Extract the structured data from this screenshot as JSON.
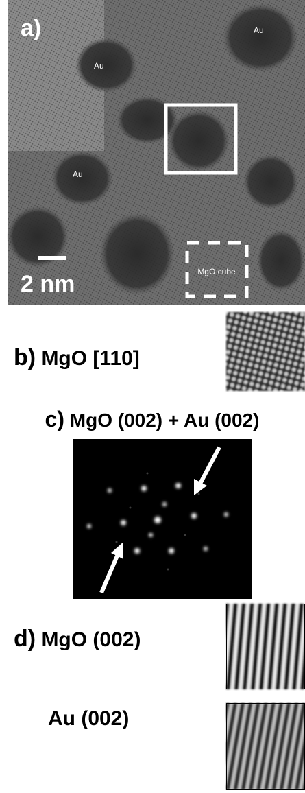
{
  "panel_a": {
    "label": "a)",
    "annotations": [
      "Au",
      "Au",
      "Au"
    ],
    "scale_bar": "2 nm",
    "box_label": "MgO cube"
  },
  "panel_b": {
    "label": "b)",
    "title": "MgO [110]"
  },
  "panel_c": {
    "label": "c)",
    "title": "MgO (002) + Au (002)"
  },
  "panel_d": {
    "label": "d)",
    "rows": [
      "MgO (002)",
      "Au (002)"
    ]
  }
}
